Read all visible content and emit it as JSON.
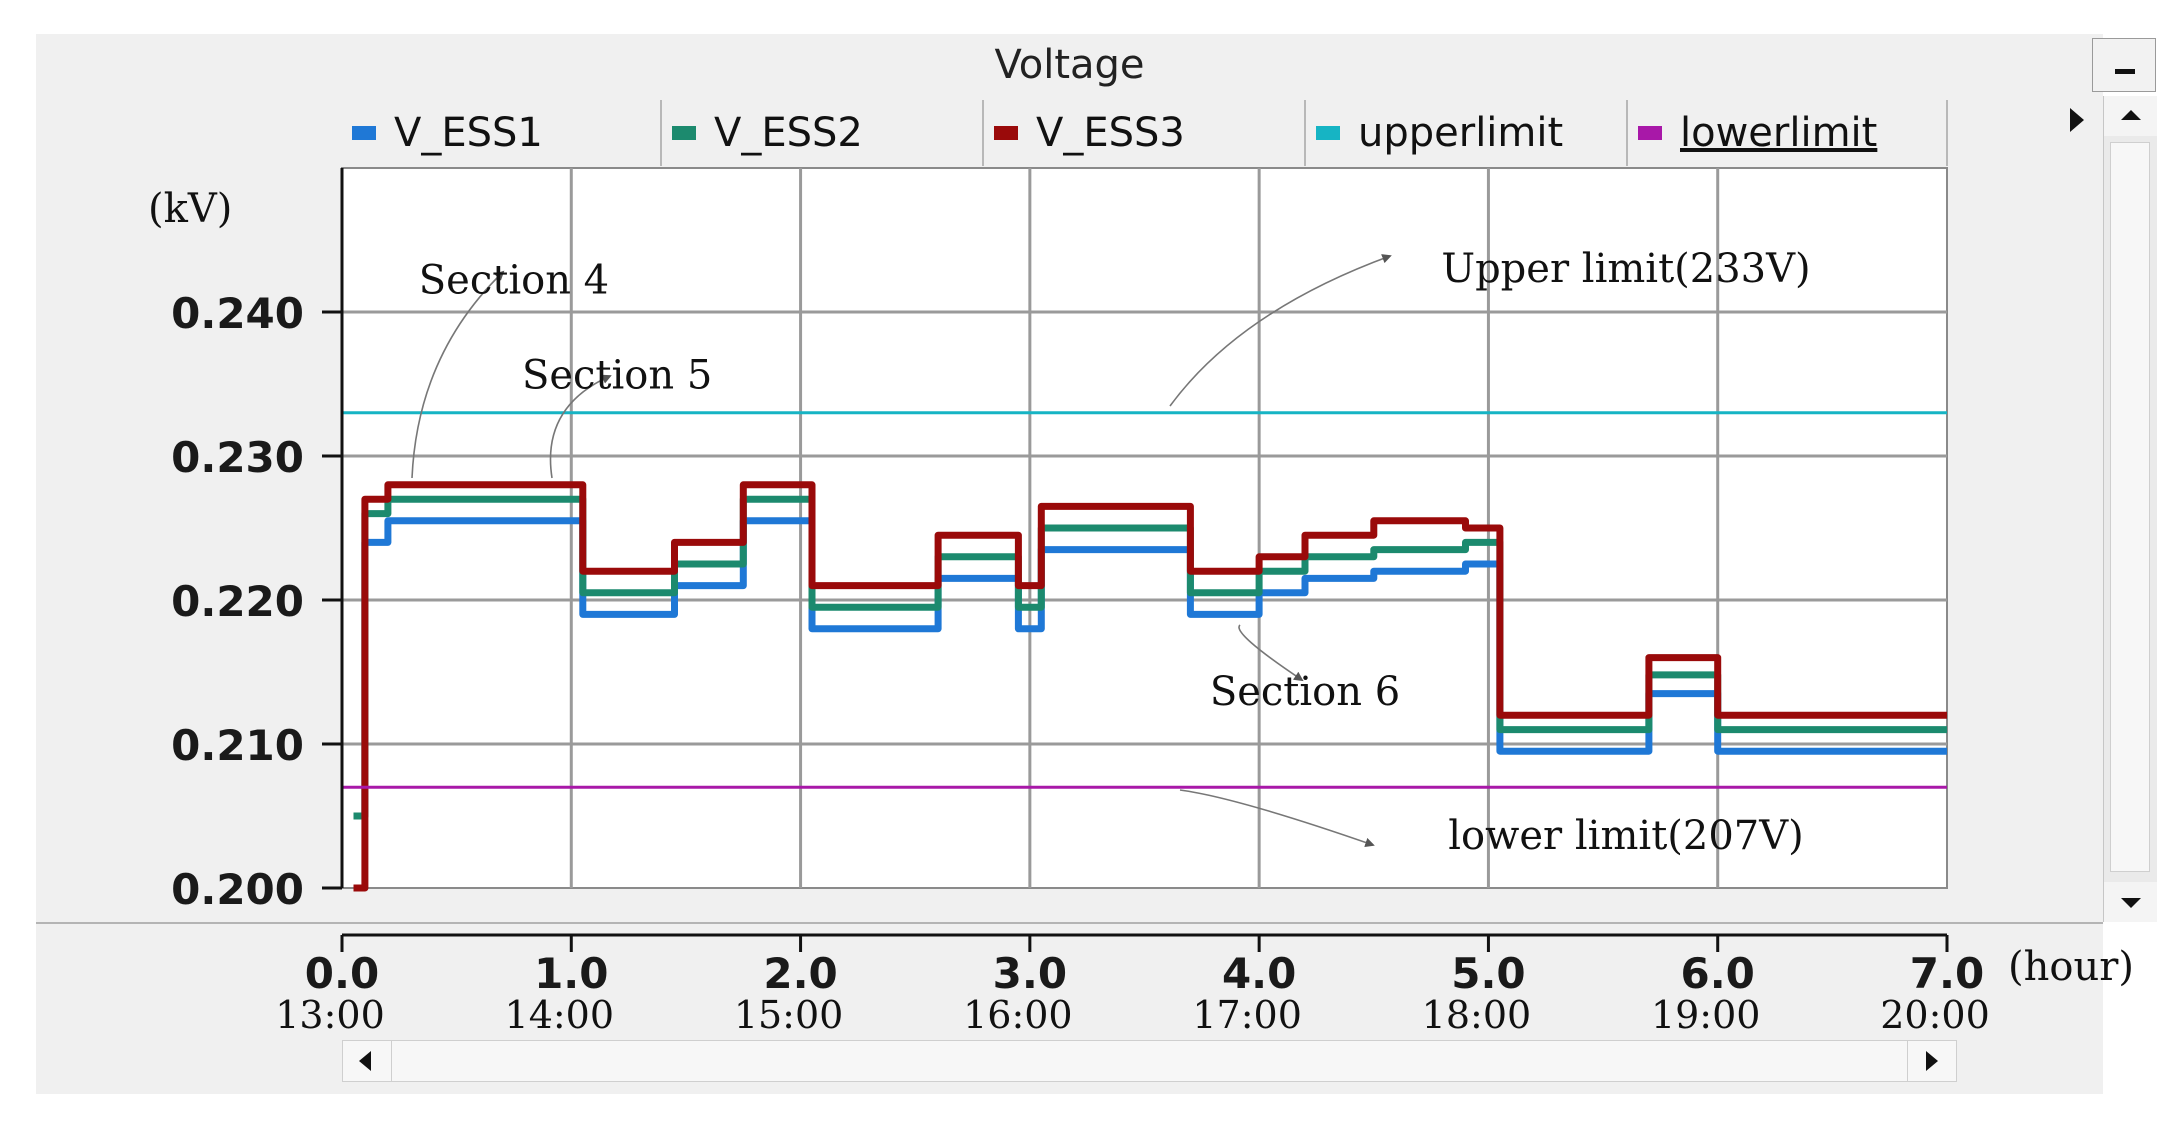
{
  "window": {
    "title": "Voltage"
  },
  "colors": {
    "V_ESS1": "#1f78d6",
    "V_ESS2": "#1c8a6e",
    "V_ESS3": "#9a0a0a",
    "upperlimit": "#16b4c4",
    "lowerlimit": "#a818a8",
    "grid": "#9a9a9a",
    "plot_bg": "#ffffff"
  },
  "chart_data": {
    "type": "line",
    "ylabel": "(kV)",
    "xlabel": "(hour)",
    "xlim": [
      0,
      7
    ],
    "ylim": [
      0.2,
      0.25
    ],
    "y_ticks": [
      {
        "value": 0.2,
        "label": "0.200"
      },
      {
        "value": 0.21,
        "label": "0.210"
      },
      {
        "value": 0.22,
        "label": "0.220"
      },
      {
        "value": 0.23,
        "label": "0.230"
      },
      {
        "value": 0.24,
        "label": "0.240"
      }
    ],
    "x_ticks": [
      {
        "value": 0,
        "label": "0.0",
        "time": "13:00"
      },
      {
        "value": 1,
        "label": "1.0",
        "time": "14:00"
      },
      {
        "value": 2,
        "label": "2.0",
        "time": "15:00"
      },
      {
        "value": 3,
        "label": "3.0",
        "time": "16:00"
      },
      {
        "value": 4,
        "label": "4.0",
        "time": "17:00"
      },
      {
        "value": 5,
        "label": "5.0",
        "time": "18:00"
      },
      {
        "value": 6,
        "label": "6.0",
        "time": "19:00"
      },
      {
        "value": 7,
        "label": "7.0",
        "time": "20:00"
      }
    ],
    "grid": true,
    "legend_position": "top",
    "series": [
      {
        "name": "V_ESS1",
        "x": [
          0.05,
          0.1,
          0.2,
          0.9,
          1.05,
          1.45,
          1.75,
          2.0,
          2.05,
          2.5,
          2.6,
          2.8,
          2.95,
          3.0,
          3.05,
          3.45,
          3.7,
          3.9,
          4.0,
          4.2,
          4.5,
          4.9,
          5.0,
          5.05,
          5.5,
          5.7,
          6.0,
          6.5,
          7.0
        ],
        "values": [
          0.205,
          0.224,
          0.2255,
          0.2255,
          0.219,
          0.221,
          0.2255,
          0.2255,
          0.218,
          0.218,
          0.2215,
          0.2215,
          0.218,
          0.218,
          0.2235,
          0.2235,
          0.219,
          0.219,
          0.2205,
          0.2215,
          0.222,
          0.2225,
          0.2225,
          0.2095,
          0.2095,
          0.2135,
          0.2095,
          0.2095,
          0.2095
        ]
      },
      {
        "name": "V_ESS2",
        "x": [
          0.05,
          0.1,
          0.2,
          0.9,
          1.05,
          1.45,
          1.75,
          2.0,
          2.05,
          2.5,
          2.6,
          2.8,
          2.95,
          3.0,
          3.05,
          3.45,
          3.7,
          3.9,
          4.0,
          4.2,
          4.5,
          4.9,
          5.0,
          5.05,
          5.5,
          5.7,
          6.0,
          6.5,
          7.0
        ],
        "values": [
          0.205,
          0.226,
          0.227,
          0.227,
          0.2205,
          0.2225,
          0.227,
          0.227,
          0.2195,
          0.2195,
          0.223,
          0.223,
          0.2195,
          0.2195,
          0.225,
          0.225,
          0.2205,
          0.2205,
          0.222,
          0.223,
          0.2235,
          0.224,
          0.224,
          0.211,
          0.211,
          0.2148,
          0.211,
          0.211,
          0.211
        ]
      },
      {
        "name": "V_ESS3",
        "x": [
          0.05,
          0.1,
          0.2,
          0.9,
          1.05,
          1.45,
          1.75,
          2.0,
          2.05,
          2.5,
          2.6,
          2.8,
          2.95,
          3.0,
          3.05,
          3.45,
          3.7,
          3.9,
          4.0,
          4.2,
          4.5,
          4.9,
          5.0,
          5.05,
          5.5,
          5.7,
          6.0,
          6.5,
          7.0
        ],
        "values": [
          0.2,
          0.227,
          0.228,
          0.228,
          0.222,
          0.224,
          0.228,
          0.228,
          0.221,
          0.221,
          0.2245,
          0.2245,
          0.221,
          0.221,
          0.2265,
          0.2265,
          0.222,
          0.222,
          0.223,
          0.2245,
          0.2255,
          0.225,
          0.225,
          0.212,
          0.212,
          0.216,
          0.212,
          0.212,
          0.212
        ]
      },
      {
        "name": "upperlimit",
        "x": [
          0,
          7
        ],
        "values": [
          0.233,
          0.233
        ]
      },
      {
        "name": "lowerlimit",
        "x": [
          0,
          7
        ],
        "values": [
          0.207,
          0.207
        ]
      }
    ],
    "annotations": [
      {
        "text": "Section 4",
        "x": 0.75,
        "y": 0.2413
      },
      {
        "text": "Section 5",
        "x": 1.2,
        "y": 0.2347
      },
      {
        "text": "Section 6",
        "x": 4.2,
        "y": 0.2127
      },
      {
        "text": "Upper limit(233V)",
        "x": 5.6,
        "y": 0.2421
      },
      {
        "text": "lower limit(207V)",
        "x": 5.6,
        "y": 0.2027
      }
    ]
  }
}
